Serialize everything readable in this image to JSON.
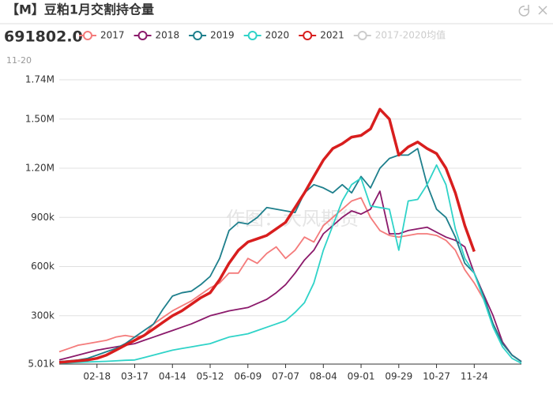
{
  "header": {
    "title": "【M】豆粕1月交割持仓量",
    "latest_value": "691802.0",
    "latest_date": "11-20"
  },
  "chart_data": {
    "type": "line",
    "watermark": "作图：大风期货",
    "categories": [
      null,
      null,
      null,
      null,
      "02-18",
      null,
      null,
      null,
      "03-17",
      null,
      null,
      null,
      "04-14",
      null,
      null,
      null,
      "05-12",
      null,
      null,
      null,
      "06-09",
      null,
      null,
      null,
      "07-07",
      null,
      null,
      null,
      "08-04",
      null,
      null,
      null,
      "09-01",
      null,
      null,
      null,
      "09-29",
      null,
      null,
      null,
      "10-27",
      null,
      null,
      null,
      "11-24",
      null,
      null,
      null,
      null,
      null
    ],
    "series": [
      {
        "name": "2017",
        "color": "#f47b7b",
        "values": [
          80000,
          100000,
          120000,
          130000,
          140000,
          150000,
          170000,
          180000,
          170000,
          180000,
          250000,
          290000,
          330000,
          360000,
          390000,
          430000,
          470000,
          500000,
          560000,
          560000,
          650000,
          620000,
          680000,
          720000,
          650000,
          700000,
          780000,
          750000,
          850000,
          900000,
          950000,
          1000000,
          1020000,
          900000,
          820000,
          790000,
          780000,
          790000,
          800000,
          800000,
          790000,
          760000,
          700000,
          580000,
          500000,
          400000,
          250000,
          130000,
          60000,
          20000
        ]
      },
      {
        "name": "2018",
        "color": "#8b1a6b",
        "values": [
          30000,
          45000,
          60000,
          75000,
          90000,
          100000,
          110000,
          120000,
          130000,
          150000,
          170000,
          190000,
          210000,
          230000,
          250000,
          275000,
          300000,
          315000,
          330000,
          340000,
          350000,
          375000,
          400000,
          440000,
          490000,
          560000,
          640000,
          700000,
          800000,
          850000,
          900000,
          940000,
          920000,
          950000,
          1060000,
          800000,
          800000,
          820000,
          830000,
          840000,
          810000,
          780000,
          760000,
          720000,
          560000,
          430000,
          300000,
          140000,
          60000,
          20000
        ]
      },
      {
        "name": "2019",
        "color": "#1e7f8c",
        "values": [
          20000,
          25000,
          30000,
          40000,
          60000,
          80000,
          100000,
          130000,
          170000,
          210000,
          250000,
          340000,
          420000,
          440000,
          450000,
          490000,
          540000,
          650000,
          820000,
          870000,
          860000,
          900000,
          960000,
          950000,
          940000,
          930000,
          1050000,
          1100000,
          1080000,
          1050000,
          1100000,
          1050000,
          1150000,
          1080000,
          1200000,
          1260000,
          1280000,
          1280000,
          1320000,
          1100000,
          950000,
          900000,
          780000,
          620000,
          560000,
          420000,
          250000,
          130000,
          60000,
          20000
        ]
      },
      {
        "name": "2020",
        "color": "#2fd3c8",
        "values": [
          10000,
          12000,
          15000,
          18000,
          20000,
          22000,
          25000,
          28000,
          30000,
          45000,
          60000,
          75000,
          90000,
          100000,
          110000,
          120000,
          130000,
          150000,
          170000,
          180000,
          190000,
          210000,
          230000,
          250000,
          270000,
          320000,
          380000,
          500000,
          700000,
          850000,
          1000000,
          1100000,
          1140000,
          970000,
          960000,
          950000,
          700000,
          1000000,
          1010000,
          1100000,
          1220000,
          1100000,
          830000,
          650000,
          560000,
          400000,
          230000,
          110000,
          40000,
          10000
        ]
      },
      {
        "name": "2021",
        "color": "#d81e1e",
        "width": 3.5,
        "values": [
          15000,
          20000,
          25000,
          30000,
          40000,
          60000,
          90000,
          120000,
          150000,
          180000,
          220000,
          260000,
          300000,
          330000,
          370000,
          410000,
          440000,
          520000,
          620000,
          700000,
          750000,
          770000,
          790000,
          830000,
          870000,
          960000,
          1050000,
          1150000,
          1250000,
          1320000,
          1350000,
          1390000,
          1400000,
          1440000,
          1560000,
          1500000,
          1280000,
          1330000,
          1360000,
          1320000,
          1290000,
          1200000,
          1050000,
          850000,
          691802,
          null,
          null,
          null,
          null,
          null
        ]
      },
      {
        "name": "2017-2020均值",
        "color": "#cccccc",
        "visible": false
      }
    ],
    "ylim": [
      5010,
      1740000
    ],
    "yticks": [
      {
        "value": 5010,
        "label": "5.01k"
      },
      {
        "value": 300000,
        "label": "300k"
      },
      {
        "value": 600000,
        "label": "600k"
      },
      {
        "value": 900000,
        "label": "900k"
      },
      {
        "value": 1200000,
        "label": "1.20M"
      },
      {
        "value": 1500000,
        "label": "1.50M"
      },
      {
        "value": 1740000,
        "label": "1.74M"
      }
    ],
    "grid": true
  }
}
